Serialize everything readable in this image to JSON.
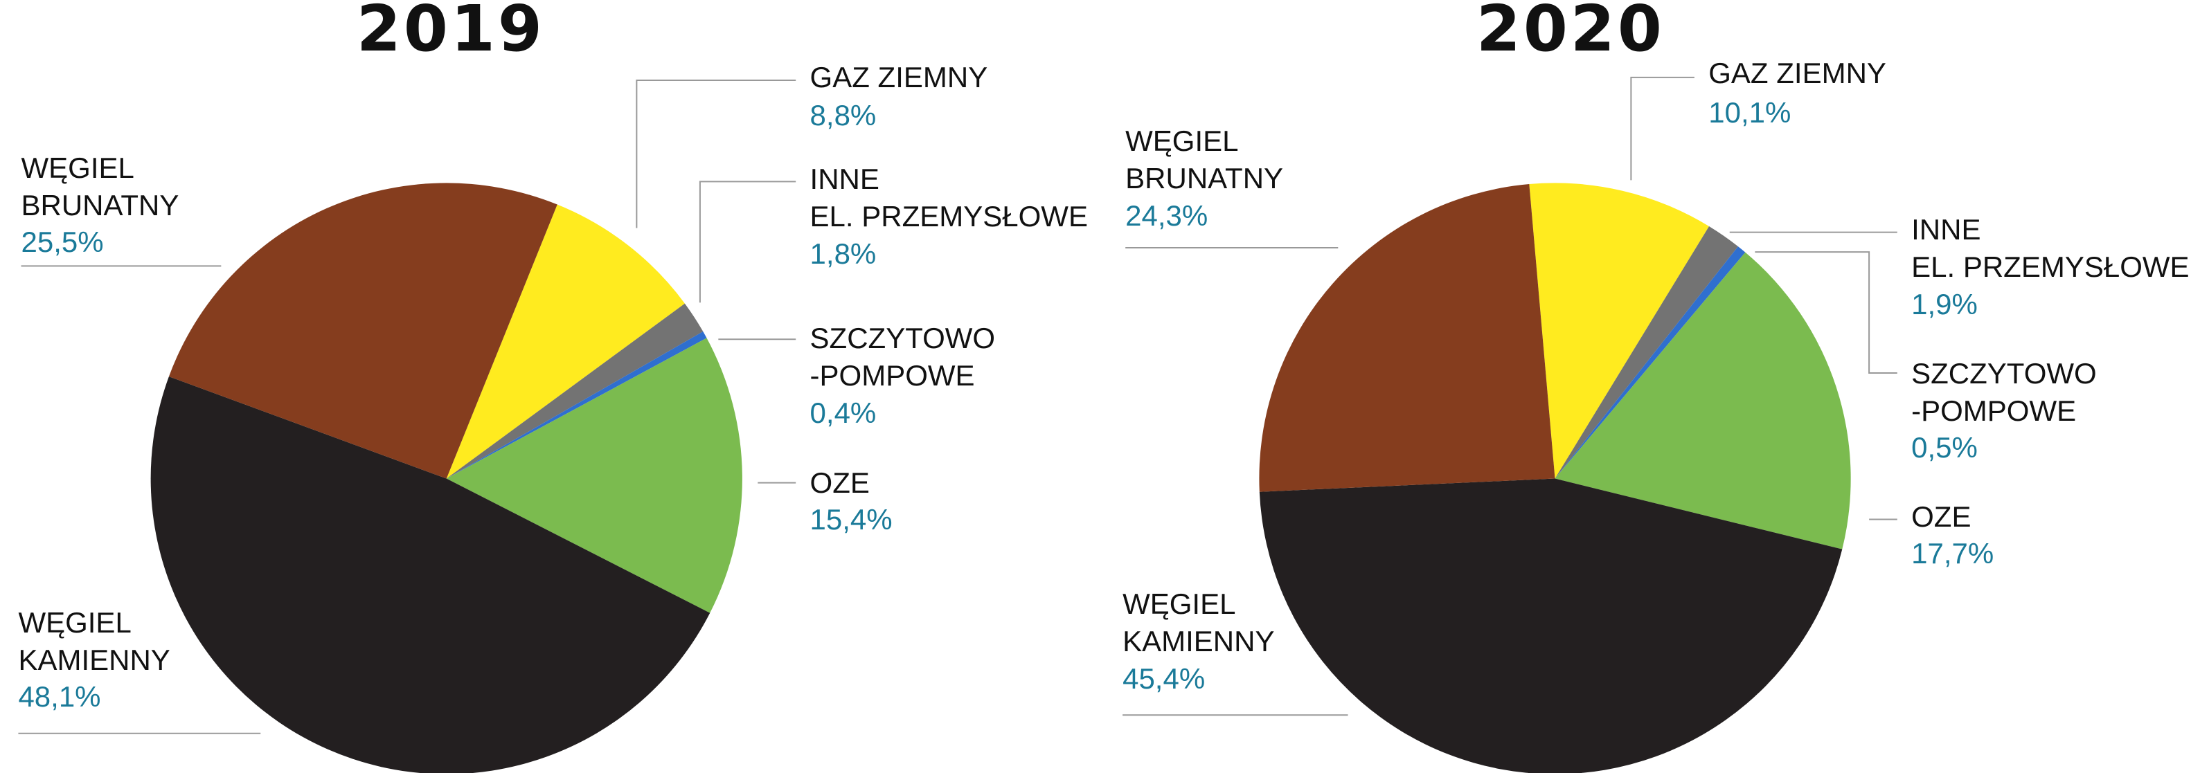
{
  "chart_data": [
    {
      "type": "pie",
      "title": "2019",
      "categories": [
        "GAZ ZIEMNY",
        "INNE\nEL. PRZEMYSŁOWE",
        "SZCZYTOWO\n-POMPOWE",
        "OZE",
        "WĘGIEL\nKAMIENNY",
        "WĘGIEL\nBRUNATNY"
      ],
      "values": [
        8.8,
        1.8,
        0.4,
        15.4,
        48.1,
        25.5
      ],
      "value_labels": [
        "8,8%",
        "1,8%",
        "0,4%",
        "15,4%",
        "48,1%",
        "25,5%"
      ],
      "colors": [
        "#ffeb1f",
        "#737373",
        "#2f6fcf",
        "#7bbb4f",
        "#231f20",
        "#853d1e"
      ]
    },
    {
      "type": "pie",
      "title": "2020",
      "categories": [
        "GAZ ZIEMNY",
        "INNE\nEL. PRZEMYSŁOWE",
        "SZCZYTOWO\n-POMPOWE",
        "OZE",
        "WĘGIEL\nKAMIENNY",
        "WĘGIEL\nBRUNATNY"
      ],
      "values": [
        10.1,
        1.9,
        0.5,
        17.7,
        45.4,
        24.3
      ],
      "value_labels": [
        "10,1%",
        "1,9%",
        "0,5%",
        "17,7%",
        "45,4%",
        "24,3%"
      ],
      "colors": [
        "#ffeb1f",
        "#737373",
        "#2f6fcf",
        "#7bbb4f",
        "#231f20",
        "#853d1e"
      ]
    }
  ]
}
